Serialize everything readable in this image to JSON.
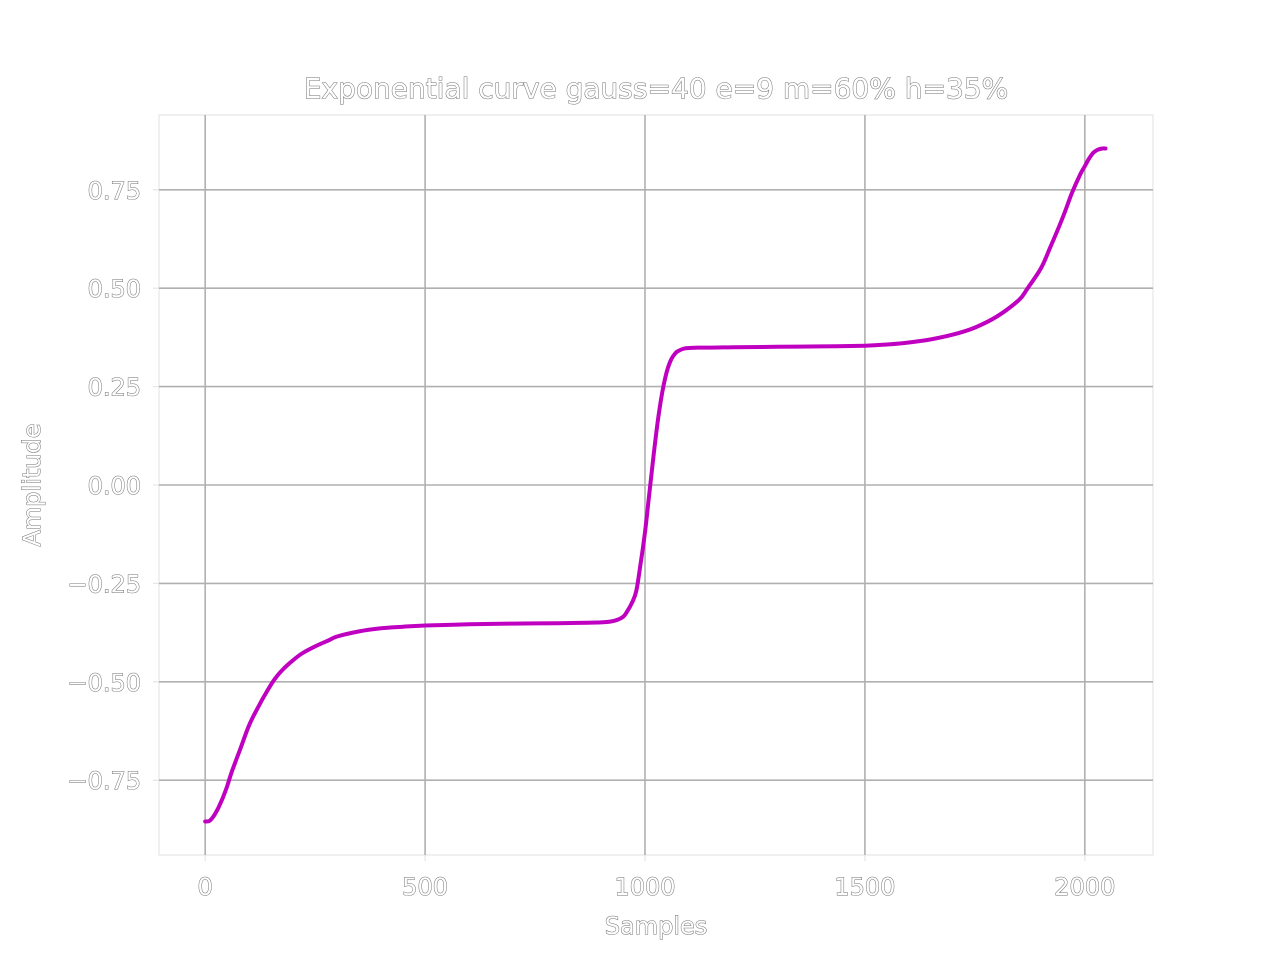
{
  "chart_data": {
    "type": "line",
    "title": "Exponential curve gauss=40 e=9 m=60% h=35%",
    "xlabel": "Samples",
    "ylabel": "Amplitude",
    "xlim": [
      -105,
      2155
    ],
    "ylim": [
      -0.94,
      0.94
    ],
    "xticks": [
      0,
      500,
      1000,
      1500,
      2000
    ],
    "xtick_labels": [
      "0",
      "500",
      "1000",
      "1500",
      "2000"
    ],
    "yticks": [
      0.75,
      0.5,
      0.25,
      0.0,
      -0.25,
      -0.5,
      -0.75
    ],
    "ytick_labels": [
      "0.75",
      "0.50",
      "0.25",
      "0.00",
      "−0.25",
      "−0.50",
      "−0.75"
    ],
    "grid": true,
    "colors": {
      "line": "#c000c0",
      "grid": "#b0b0b0",
      "axes": "#e6e6e6",
      "text_outline": "#6e6e6e"
    },
    "series": [
      {
        "x": [
          0,
          10,
          20,
          30,
          40,
          50,
          60,
          80,
          100,
          120,
          140,
          160,
          180,
          200,
          220,
          250,
          280,
          300,
          350,
          400,
          450,
          500,
          600,
          700,
          800,
          900,
          930,
          950,
          960,
          970,
          980,
          990,
          1000,
          1010,
          1020,
          1030,
          1040,
          1050,
          1060,
          1070,
          1080,
          1090,
          1100,
          1120,
          1150,
          1200,
          1300,
          1400,
          1500,
          1550,
          1600,
          1650,
          1700,
          1750,
          1800,
          1850,
          1870,
          1900,
          1920,
          1950,
          1970,
          1990,
          2000,
          2010,
          2020,
          2030,
          2040,
          2047
        ],
        "y": [
          -0.855,
          -0.853,
          -0.84,
          -0.82,
          -0.795,
          -0.765,
          -0.73,
          -0.67,
          -0.61,
          -0.565,
          -0.525,
          -0.49,
          -0.465,
          -0.445,
          -0.428,
          -0.41,
          -0.395,
          -0.385,
          -0.372,
          -0.364,
          -0.36,
          -0.357,
          -0.354,
          -0.352,
          -0.351,
          -0.349,
          -0.345,
          -0.335,
          -0.32,
          -0.3,
          -0.27,
          -0.2,
          -0.12,
          -0.02,
          0.08,
          0.17,
          0.24,
          0.29,
          0.32,
          0.336,
          0.343,
          0.347,
          0.348,
          0.349,
          0.349,
          0.35,
          0.351,
          0.352,
          0.354,
          0.357,
          0.362,
          0.37,
          0.382,
          0.4,
          0.428,
          0.47,
          0.5,
          0.55,
          0.6,
          0.68,
          0.74,
          0.79,
          0.81,
          0.83,
          0.845,
          0.852,
          0.855,
          0.855
        ]
      }
    ]
  }
}
